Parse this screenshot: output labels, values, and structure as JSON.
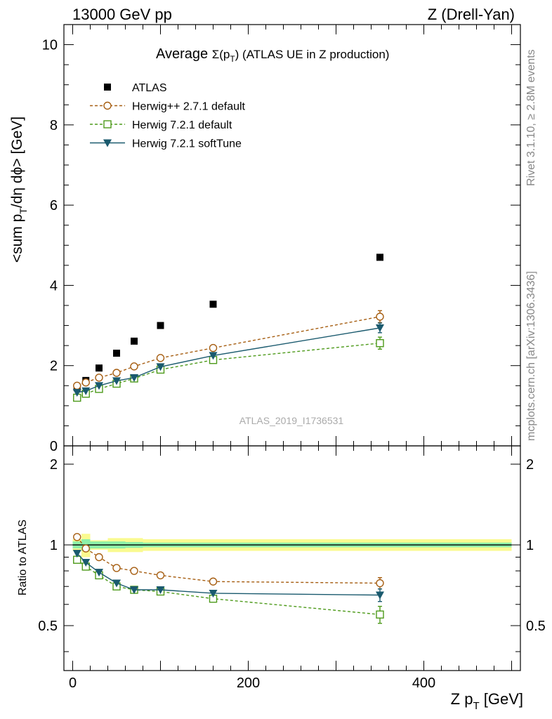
{
  "header": {
    "left": "13000 GeV pp",
    "right": "Z (Drell-Yan)"
  },
  "side_labels": {
    "rivet": "Rivet 3.1.10, ≥ 2.8M events",
    "mcplots": "mcplots.cern.ch [arXiv:1306.3436]"
  },
  "watermark": "ATLAS_2019_I1736531",
  "colors": {
    "atlas": "#000000",
    "herwigpp": "#a65e12",
    "herwig721": "#4d9a1a",
    "softtune": "#1a5a6e",
    "band_inner": "#8df0a8",
    "band_outer": "#fafa90"
  },
  "chart_data": [
    {
      "type": "line",
      "panel": "main",
      "title_prefix": "Average ",
      "title_symbol": "Σ(p",
      "title_sub": "T",
      "title_suffix": ") (ATLAS UE in Z production)",
      "ylabel": "<sum p_T/dη dϕ> [GeV]",
      "ylabel_parts": [
        "<sum p",
        "T",
        "/dη dϕ> [GeV]"
      ],
      "xlim": [
        -10,
        510
      ],
      "ylim": [
        0,
        10.5
      ],
      "yticks": [
        0,
        2,
        4,
        6,
        8,
        10
      ],
      "legend_position": "top-left",
      "series": [
        {
          "name": "ATLAS",
          "key": "atlas",
          "marker": "square-filled",
          "line": "none",
          "x": [
            5,
            15,
            30,
            50,
            70,
            100,
            160,
            350
          ],
          "y": [
            1.45,
            1.63,
            1.94,
            2.31,
            2.61,
            3.0,
            3.53,
            4.7
          ]
        },
        {
          "name": "Herwig++ 2.7.1 default",
          "key": "herwigpp",
          "marker": "circle-open",
          "line": "dashed",
          "x": [
            5,
            15,
            30,
            50,
            70,
            100,
            160,
            350
          ],
          "y": [
            1.5,
            1.58,
            1.7,
            1.82,
            1.98,
            2.19,
            2.44,
            3.22
          ],
          "err": [
            0,
            0,
            0,
            0,
            0,
            0,
            0,
            0.15
          ]
        },
        {
          "name": "Herwig 7.2.1 default",
          "key": "herwig721",
          "marker": "square-open",
          "line": "dashed",
          "x": [
            5,
            15,
            30,
            50,
            70,
            100,
            160,
            350
          ],
          "y": [
            1.2,
            1.3,
            1.42,
            1.55,
            1.68,
            1.9,
            2.14,
            2.56
          ],
          "err": [
            0,
            0,
            0,
            0,
            0,
            0,
            0,
            0.15
          ]
        },
        {
          "name": "Herwig 7.2.1 softTune",
          "key": "softtune",
          "marker": "triangle-down-filled",
          "line": "solid",
          "x": [
            5,
            15,
            30,
            50,
            70,
            100,
            160,
            350
          ],
          "y": [
            1.33,
            1.37,
            1.5,
            1.62,
            1.7,
            1.97,
            2.25,
            2.94
          ],
          "err": [
            0,
            0,
            0,
            0,
            0,
            0,
            0,
            0.12
          ]
        }
      ]
    },
    {
      "type": "line",
      "panel": "ratio",
      "ylabel": "Ratio to ATLAS",
      "xlabel": "Z p_T [GeV]",
      "xlabel_parts": [
        "Z p",
        "T",
        " [GeV]"
      ],
      "xlim": [
        -10,
        510
      ],
      "ylim": [
        0.34,
        2.34
      ],
      "scale": "log",
      "yticks": [
        0.5,
        1,
        2
      ],
      "xticks": [
        0,
        200,
        400
      ],
      "reference_line": 1,
      "band": {
        "edges": [
          0,
          10,
          20,
          40,
          60,
          80,
          120,
          200,
          500
        ],
        "inner": [
          0.03,
          0.05,
          0.03,
          0.03,
          0.025,
          0.02,
          0.02,
          0.02
        ],
        "outer": [
          0.05,
          0.1,
          0.04,
          0.06,
          0.06,
          0.05,
          0.05,
          0.05
        ]
      },
      "series": [
        {
          "name": "Herwig++ 2.7.1 default",
          "key": "herwigpp",
          "marker": "circle-open",
          "line": "dashed",
          "x": [
            5,
            15,
            30,
            50,
            70,
            100,
            160,
            350
          ],
          "y": [
            1.07,
            0.97,
            0.9,
            0.82,
            0.8,
            0.77,
            0.73,
            0.72
          ],
          "err": [
            0,
            0,
            0,
            0,
            0,
            0,
            0,
            0.035
          ]
        },
        {
          "name": "Herwig 7.2.1 default",
          "key": "herwig721",
          "marker": "square-open",
          "line": "dashed",
          "x": [
            5,
            15,
            30,
            50,
            70,
            100,
            160,
            350
          ],
          "y": [
            0.88,
            0.83,
            0.77,
            0.7,
            0.68,
            0.67,
            0.63,
            0.55
          ],
          "err": [
            0,
            0,
            0,
            0,
            0,
            0,
            0,
            0.04
          ]
        },
        {
          "name": "Herwig 7.2.1 softTune",
          "key": "softtune",
          "marker": "triangle-down-filled",
          "line": "solid",
          "x": [
            5,
            15,
            30,
            50,
            70,
            100,
            160,
            350
          ],
          "y": [
            0.93,
            0.86,
            0.79,
            0.72,
            0.68,
            0.68,
            0.66,
            0.65
          ],
          "err": [
            0,
            0,
            0,
            0,
            0,
            0,
            0,
            0.035
          ]
        }
      ]
    }
  ]
}
